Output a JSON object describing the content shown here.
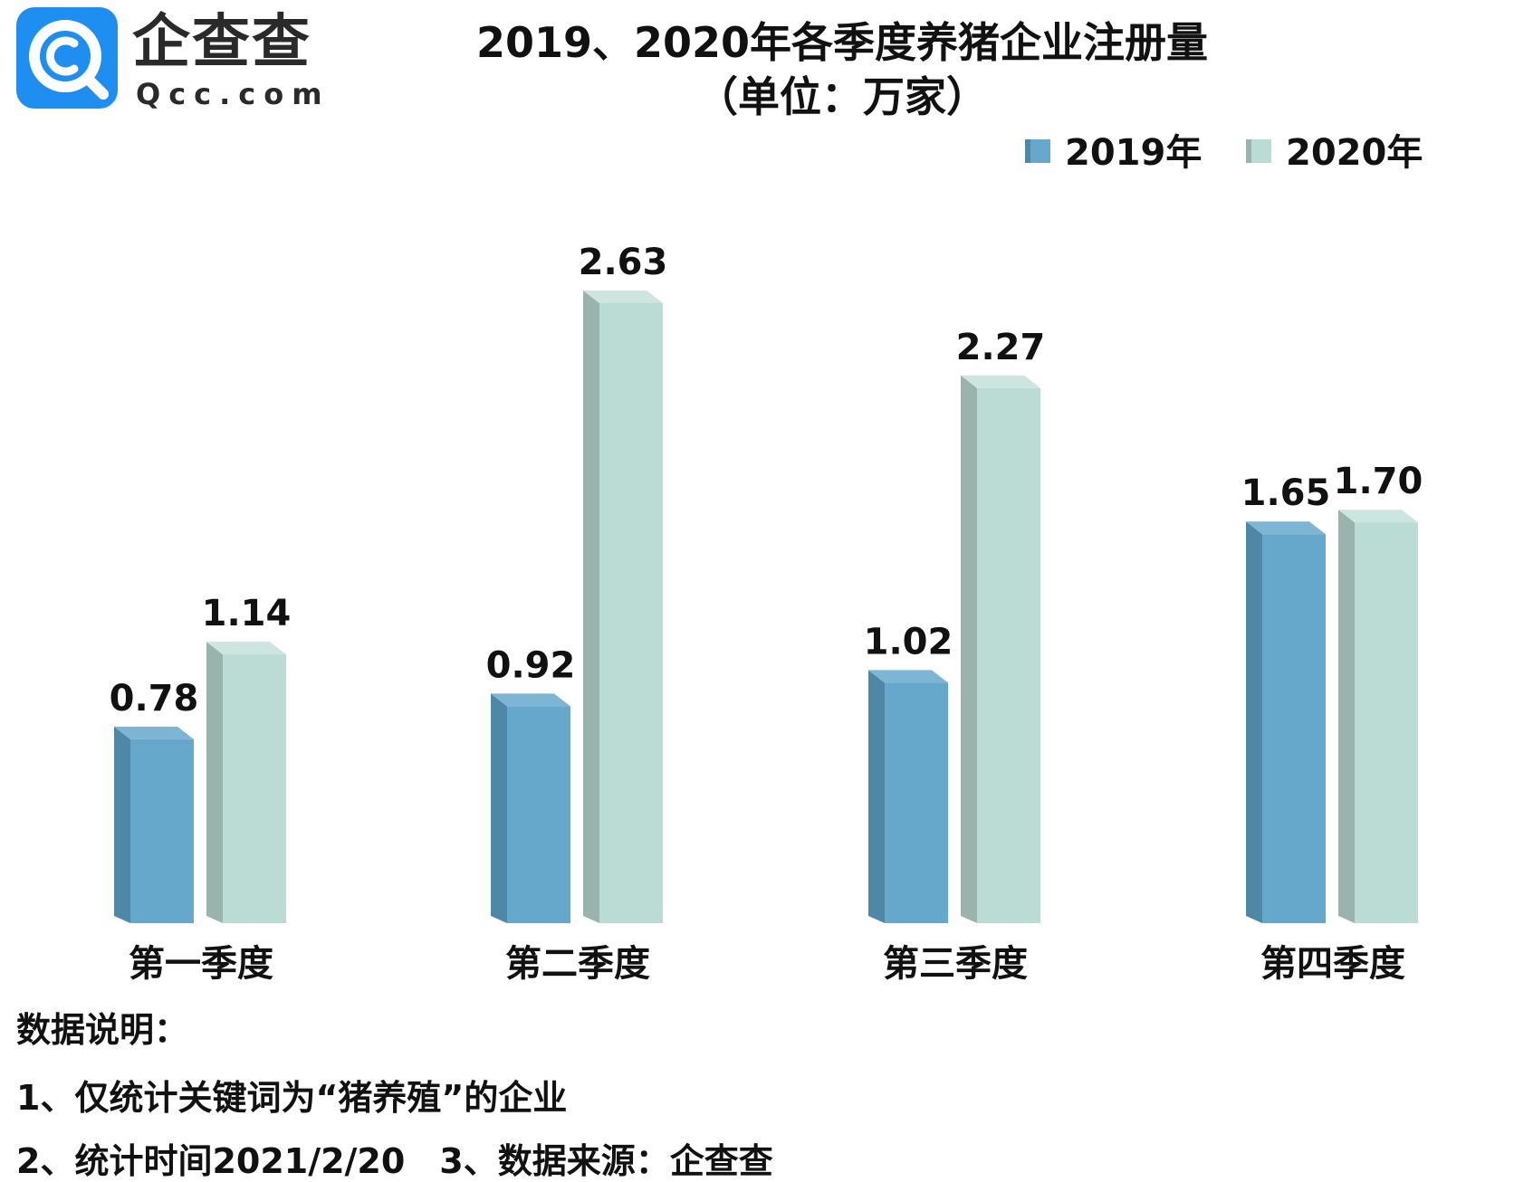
{
  "logo": {
    "name": "企查查",
    "domain": "Qcc.com"
  },
  "chart_data": {
    "type": "bar",
    "title": "2019、2020年各季度养猪企业注册量",
    "subtitle": "（单位：万家）",
    "categories": [
      "第一季度",
      "第二季度",
      "第三季度",
      "第四季度"
    ],
    "series": [
      {
        "name": "2019年",
        "values": [
          0.78,
          0.92,
          1.02,
          1.65
        ],
        "labels": [
          "0.78",
          "0.92",
          "1.02",
          "1.65"
        ],
        "color": "#65A8CB",
        "side_color": "#4F88A6",
        "top_color": "#7DB6D4"
      },
      {
        "name": "2020年",
        "values": [
          1.14,
          2.63,
          2.27,
          1.7
        ],
        "labels": [
          "1.14",
          "2.63",
          "2.27",
          "1.70"
        ],
        "color": "#BADCD4",
        "side_color": "#9AB4AD",
        "top_color": "#CDE5DF"
      }
    ],
    "ylim": [
      0,
      2.63
    ],
    "legend_position": "top-right",
    "xlabel": "",
    "ylabel": ""
  },
  "notes": {
    "heading": "数据说明：",
    "line1": "1、仅统计关键词为“猪养殖”的企业",
    "line2": "2、统计时间2021/2/20　3、数据来源：企查查"
  }
}
